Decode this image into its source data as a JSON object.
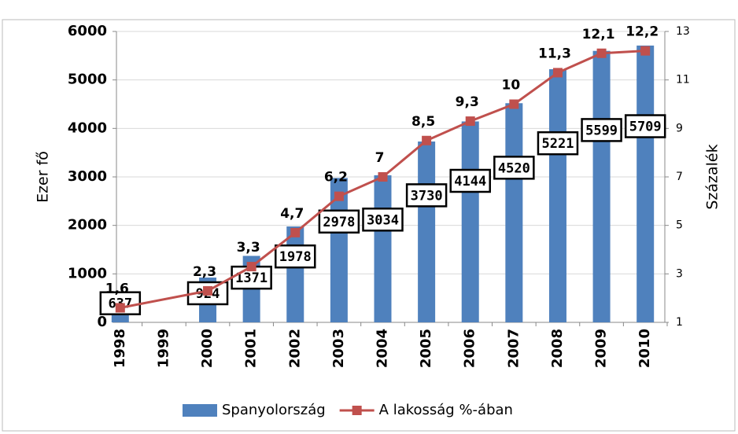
{
  "chart_data": {
    "type": "bar_line",
    "xticks": [
      1998,
      1999,
      2000,
      2001,
      2002,
      2003,
      2004,
      2005,
      2006,
      2007,
      2008,
      2009,
      2010
    ],
    "xlim": [
      1997.5,
      2010.5
    ],
    "ylabel": "Ezer fő",
    "y2label": "Százalék",
    "ylim": [
      0,
      6000
    ],
    "yticks": [
      0,
      1000,
      2000,
      3000,
      4000,
      5000,
      6000
    ],
    "y2lim": [
      1,
      13
    ],
    "y2ticks": [
      1,
      3,
      5,
      7,
      9,
      11,
      13
    ],
    "grid": true,
    "legend": "bottom",
    "series": [
      {
        "name": "Spanyolország",
        "type": "bar",
        "color": "#4f81bd",
        "x": [
          1998,
          2000,
          2001,
          2002,
          2003,
          2004,
          2005,
          2006,
          2007,
          2008,
          2009,
          2010
        ],
        "values": [
          637,
          924,
          1371,
          1978,
          2978,
          3034,
          3730,
          4144,
          4520,
          5221,
          5599,
          5709
        ]
      },
      {
        "name": "A lakosság %-ában",
        "type": "line",
        "axis": "y2",
        "color": "#c0504d",
        "x": [
          1998,
          2000,
          2001,
          2002,
          2003,
          2004,
          2005,
          2006,
          2007,
          2008,
          2009,
          2010
        ],
        "values": [
          1.6,
          2.3,
          3.3,
          4.7,
          6.2,
          7,
          8.5,
          9.3,
          10,
          11.3,
          12.1,
          12.2
        ],
        "value_labels": [
          "1,6",
          "2,3",
          "3,3",
          "4,7",
          "6,2",
          "7",
          "8,5",
          "9,3",
          "10",
          "11,3",
          "12,1",
          "12,2"
        ]
      }
    ]
  }
}
